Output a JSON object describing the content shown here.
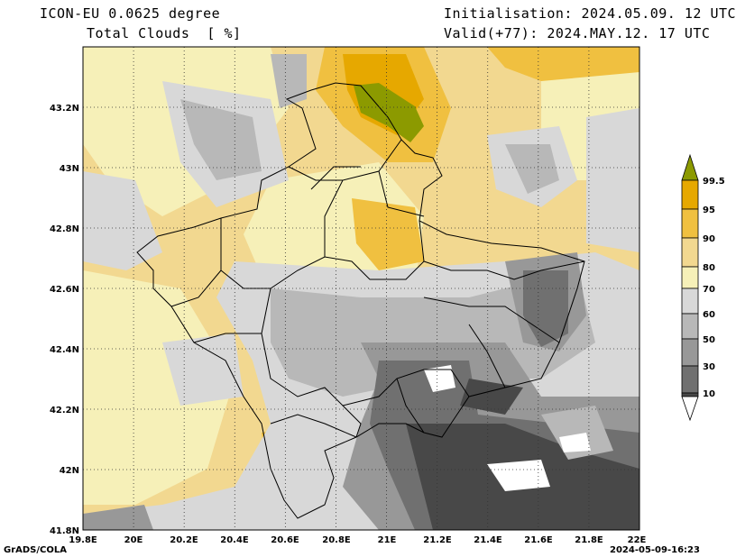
{
  "header": {
    "model": "ICON-EU 0.0625 degree",
    "field": "Total Clouds  [ %]",
    "init": "Initialisation: 2024.05.09. 12 UTC",
    "valid": "Valid(+77): 2024.MAY.12. 17 UTC"
  },
  "map": {
    "lon_range": [
      19.8,
      22.0
    ],
    "lat_range": [
      41.8,
      43.4
    ],
    "x_ticks": [
      "19.8E",
      "20E",
      "20.2E",
      "20.4E",
      "20.6E",
      "20.8E",
      "21E",
      "21.2E",
      "21.4E",
      "21.6E",
      "21.8E",
      "22E"
    ],
    "y_ticks": [
      "41.8N",
      "42N",
      "42.2N",
      "42.4N",
      "42.6N",
      "42.8N",
      "43N",
      "43.2N"
    ],
    "grid": "dotted"
  },
  "colorbar": {
    "labels": [
      "99.5",
      "95",
      "90",
      "80",
      "70",
      "60",
      "50",
      "30",
      "10"
    ],
    "colors": [
      "#8c9a00",
      "#e6a800",
      "#f0c040",
      "#f2d890",
      "#f6f0b8",
      "#d8d8d8",
      "#b8b8b8",
      "#989898",
      "#707070",
      "#484848",
      "#ffffff"
    ]
  },
  "footer": {
    "left": "GrADS/COLA",
    "right": "2024-05-09-16:23"
  }
}
